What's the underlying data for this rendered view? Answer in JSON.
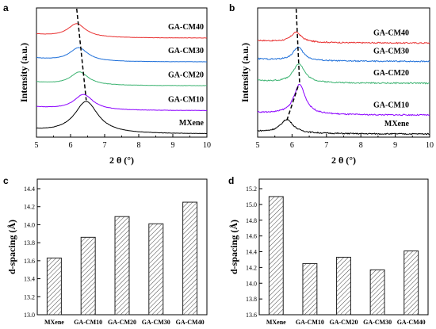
{
  "chart_data": [
    {
      "panel": "a",
      "type": "line",
      "xlabel": "2 θ (°)",
      "ylabel": "Intensity (a.u.)",
      "xlim": [
        5,
        10
      ],
      "xticks": [
        "5",
        "6",
        "7",
        "8",
        "9",
        "10"
      ],
      "series": [
        {
          "name": "MXene",
          "color": "#000000",
          "peak": 6.46,
          "amp": 3.2,
          "offset": 0.0,
          "width": 0.42
        },
        {
          "name": "GA-CM10",
          "color": "#8b00ff",
          "peak": 6.38,
          "amp": 1.55,
          "offset": 2.35,
          "width": 0.34
        },
        {
          "name": "GA-CM20",
          "color": "#3cb371",
          "peak": 6.26,
          "amp": 1.3,
          "offset": 4.85,
          "width": 0.32
        },
        {
          "name": "GA-CM30",
          "color": "#1e6fd9",
          "peak": 6.24,
          "amp": 1.35,
          "offset": 7.25,
          "width": 0.32
        },
        {
          "name": "GA-CM40",
          "color": "#e83030",
          "peak": 6.18,
          "amp": 1.35,
          "offset": 9.65,
          "width": 0.32
        }
      ]
    },
    {
      "panel": "b",
      "type": "line",
      "xlabel": "2 θ (°)",
      "ylabel": "Intensity (a.u.)",
      "xlim": [
        5,
        10
      ],
      "xticks": [
        "5",
        "6",
        "7",
        "8",
        "9",
        "10"
      ],
      "series": [
        {
          "name": "MXene",
          "color": "#000000",
          "peak": 5.85,
          "amp": 1.35,
          "offset": 0.0,
          "width": 0.22
        },
        {
          "name": "GA-CM10",
          "color": "#8b00ff",
          "peak": 6.22,
          "amp": 3.0,
          "offset": 1.9,
          "width": 0.2
        },
        {
          "name": "GA-CM20",
          "color": "#3cb371",
          "peak": 6.2,
          "amp": 1.9,
          "offset": 5.1,
          "width": 0.2
        },
        {
          "name": "GA-CM30",
          "color": "#1e6fd9",
          "peak": 6.18,
          "amp": 1.35,
          "offset": 7.3,
          "width": 0.18
        },
        {
          "name": "GA-CM40",
          "color": "#e83030",
          "peak": 6.12,
          "amp": 1.0,
          "offset": 9.15,
          "width": 0.18
        }
      ]
    },
    {
      "panel": "c",
      "type": "bar",
      "ylabel": "d-spacing (Å)",
      "ylim": [
        13.0,
        14.4
      ],
      "yticks": [
        "13.0",
        "13.2",
        "13.4",
        "13.6",
        "13.8",
        "14.0",
        "14.2",
        "14.4"
      ],
      "categories": [
        "MXene",
        "GA-CM10",
        "GA-CM20",
        "GA-CM30",
        "GA-CM40"
      ],
      "values": [
        13.63,
        13.86,
        14.09,
        14.01,
        14.25
      ]
    },
    {
      "panel": "d",
      "type": "bar",
      "ylabel": "d-spacing (Å)",
      "ylim": [
        13.6,
        15.2
      ],
      "yticks": [
        "13.6",
        "13.8",
        "14.0",
        "14.2",
        "14.4",
        "14.6",
        "14.8",
        "15.0",
        "15.2"
      ],
      "categories": [
        "MXene",
        "GA-CM10",
        "GA-CM20",
        "GA-CM30",
        "GA-CM40"
      ],
      "values": [
        15.1,
        14.25,
        14.33,
        14.17,
        14.41
      ]
    }
  ]
}
